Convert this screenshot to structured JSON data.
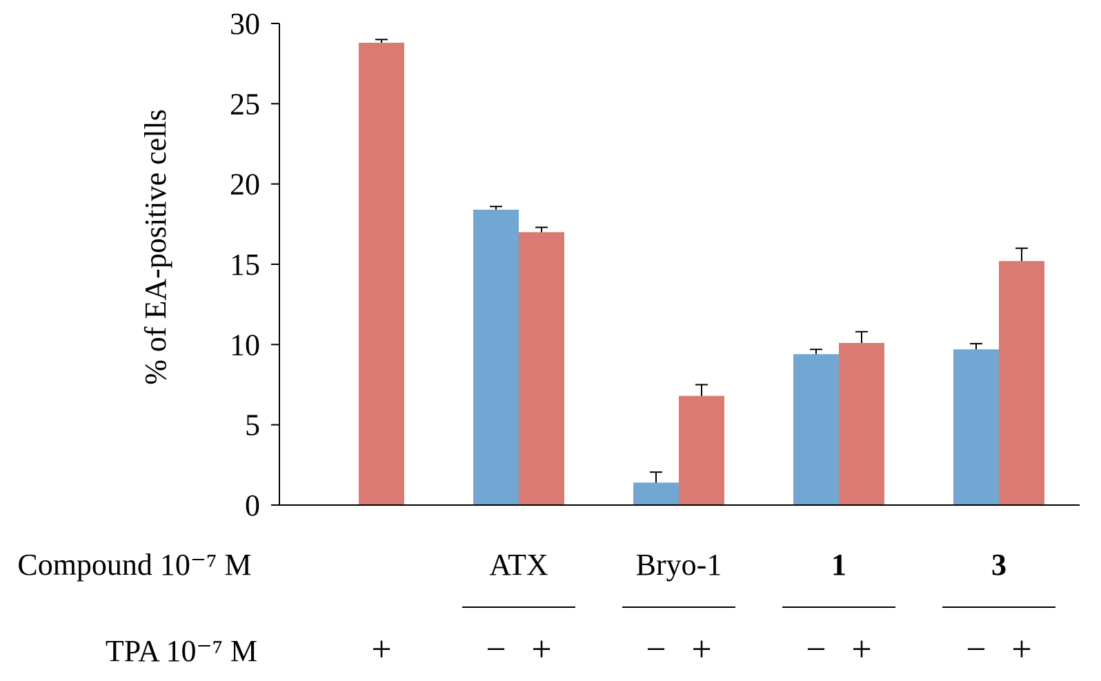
{
  "chart_data": {
    "type": "bar",
    "ylabel": "% of EA-positive cells",
    "ylim": [
      0,
      30
    ],
    "yticks": [
      "0",
      "5",
      "10",
      "15",
      "20",
      "25",
      "30"
    ],
    "grid": false,
    "legend": "none",
    "colors": {
      "tpa_minus": "#72a6d3",
      "tpa_plus": "#d97b72"
    },
    "rows": {
      "compound_label": "Compound 10⁻⁷ M",
      "tpa_label": "TPA 10⁻⁷ M"
    },
    "groups": [
      {
        "compound": "",
        "bold": false,
        "bars": [
          {
            "tpa": "",
            "value": 0,
            "error": 0
          },
          {
            "tpa": "+",
            "value": 28.8,
            "error": 0.2
          }
        ]
      },
      {
        "compound": "ATX",
        "bold": false,
        "bars": [
          {
            "tpa": "−",
            "value": 18.4,
            "error": 0.2
          },
          {
            "tpa": "+",
            "value": 17.0,
            "error": 0.3
          }
        ]
      },
      {
        "compound": "Bryo-1",
        "bold": false,
        "bars": [
          {
            "tpa": "−",
            "value": 1.4,
            "error": 0.65
          },
          {
            "tpa": "+",
            "value": 6.8,
            "error": 0.7
          }
        ]
      },
      {
        "compound": "1",
        "bold": true,
        "bars": [
          {
            "tpa": "−",
            "value": 9.4,
            "error": 0.3
          },
          {
            "tpa": "+",
            "value": 10.1,
            "error": 0.7
          }
        ]
      },
      {
        "compound": "3",
        "bold": true,
        "bars": [
          {
            "tpa": "−",
            "value": 9.7,
            "error": 0.35
          },
          {
            "tpa": "+",
            "value": 15.2,
            "error": 0.8
          }
        ]
      }
    ]
  }
}
